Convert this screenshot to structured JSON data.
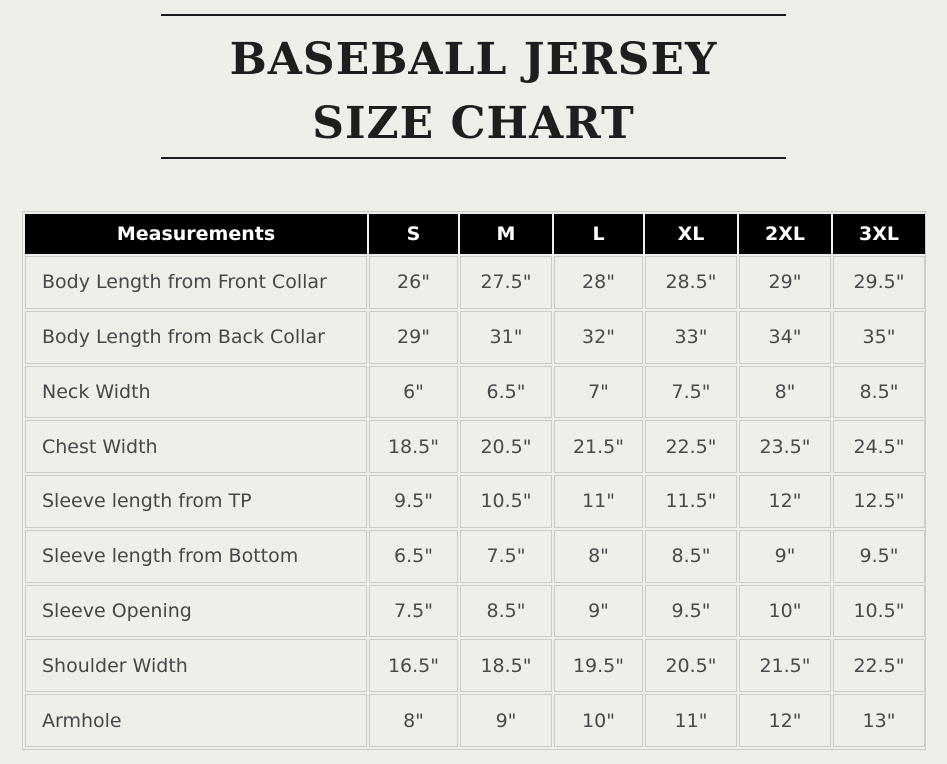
{
  "title": {
    "line1": "BASEBALL JERSEY",
    "line2": "SIZE CHART"
  },
  "table": {
    "headers": [
      "Measurements",
      "S",
      "M",
      "L",
      "XL",
      "2XL",
      "3XL"
    ],
    "rows": [
      {
        "label": "Body Length from Front Collar",
        "values": [
          "26\"",
          "27.5\"",
          "28\"",
          "28.5\"",
          "29\"",
          "29.5\""
        ]
      },
      {
        "label": "Body Length from Back Collar",
        "values": [
          "29\"",
          "31\"",
          "32\"",
          "33\"",
          "34\"",
          "35\""
        ]
      },
      {
        "label": "Neck Width",
        "values": [
          "6\"",
          "6.5\"",
          "7\"",
          "7.5\"",
          "8\"",
          "8.5\""
        ]
      },
      {
        "label": "Chest Width",
        "values": [
          "18.5\"",
          "20.5\"",
          "21.5\"",
          "22.5\"",
          "23.5\"",
          "24.5\""
        ]
      },
      {
        "label": "Sleeve length from TP",
        "values": [
          "9.5\"",
          "10.5\"",
          "11\"",
          "11.5\"",
          "12\"",
          "12.5\""
        ]
      },
      {
        "label": "Sleeve length from Bottom",
        "values": [
          "6.5\"",
          "7.5\"",
          "8\"",
          "8.5\"",
          "9\"",
          "9.5\""
        ]
      },
      {
        "label": "Sleeve Opening",
        "values": [
          "7.5\"",
          "8.5\"",
          "9\"",
          "9.5\"",
          "10\"",
          "10.5\""
        ]
      },
      {
        "label": "Shoulder Width",
        "values": [
          "16.5\"",
          "18.5\"",
          "19.5\"",
          "20.5\"",
          "21.5\"",
          "22.5\""
        ]
      },
      {
        "label": "Armhole",
        "values": [
          "8\"",
          "9\"",
          "10\"",
          "11\"",
          "12\"",
          "13\""
        ]
      }
    ]
  },
  "colors": {
    "background": "#efeee9",
    "header_bg": "#000000",
    "header_text": "#ffffff",
    "text": "#474747",
    "border": "#cdcbc5"
  }
}
